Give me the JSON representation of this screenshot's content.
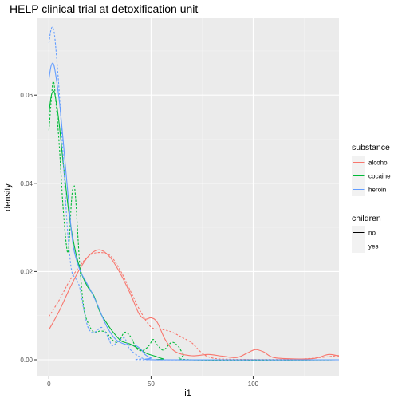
{
  "chart_data": {
    "type": "line",
    "title": "HELP clinical trial at detoxification unit",
    "xlabel": "i1",
    "ylabel": "density",
    "xlim": [
      -6,
      142
    ],
    "ylim": [
      -0.0038,
      0.0774
    ],
    "x_ticks": [
      0,
      50,
      100
    ],
    "x_tick_labels": [
      "0",
      "50",
      "100"
    ],
    "y_ticks": [
      0.0,
      0.02,
      0.04,
      0.06
    ],
    "y_tick_labels": [
      "0.00",
      "0.02",
      "0.04",
      "0.06"
    ],
    "grid": true,
    "legend_position": "right",
    "legends": [
      {
        "title": "substance",
        "items": [
          {
            "label": "alcohol",
            "color": "#F8766D"
          },
          {
            "label": "cocaine",
            "color": "#00BA38"
          },
          {
            "label": "heroin",
            "color": "#619CFF"
          }
        ]
      },
      {
        "title": "children",
        "items": [
          {
            "label": "no",
            "linetype": "solid"
          },
          {
            "label": "yes",
            "linetype": "dashed"
          }
        ]
      }
    ],
    "series": [
      {
        "substance": "alcohol",
        "children": "no",
        "color": "#F8766D",
        "linetype": "solid",
        "points": [
          [
            0,
            0.0068
          ],
          [
            5,
            0.011
          ],
          [
            10,
            0.016
          ],
          [
            15,
            0.0205
          ],
          [
            20,
            0.0238
          ],
          [
            25,
            0.0249
          ],
          [
            30,
            0.0232
          ],
          [
            35,
            0.0195
          ],
          [
            40,
            0.0148
          ],
          [
            44,
            0.0105
          ],
          [
            47,
            0.0092
          ],
          [
            50,
            0.0095
          ],
          [
            53,
            0.0085
          ],
          [
            57,
            0.0045
          ],
          [
            62,
            0.0018
          ],
          [
            70,
            0.0009
          ],
          [
            78,
            0.0012
          ],
          [
            85,
            0.0008
          ],
          [
            92,
            0.0005
          ],
          [
            97,
            0.0015
          ],
          [
            101,
            0.0023
          ],
          [
            105,
            0.0018
          ],
          [
            110,
            0.0005
          ],
          [
            120,
            0.0002
          ],
          [
            130,
            0.0003
          ],
          [
            137,
            0.0012
          ],
          [
            142,
            0.0008
          ]
        ]
      },
      {
        "substance": "alcohol",
        "children": "yes",
        "color": "#F8766D",
        "linetype": "dashed",
        "points": [
          [
            0,
            0.0098
          ],
          [
            5,
            0.0135
          ],
          [
            10,
            0.0178
          ],
          [
            15,
            0.0212
          ],
          [
            20,
            0.0237
          ],
          [
            25,
            0.0243
          ],
          [
            30,
            0.0236
          ],
          [
            35,
            0.0202
          ],
          [
            40,
            0.0155
          ],
          [
            45,
            0.0108
          ],
          [
            50,
            0.0074
          ],
          [
            55,
            0.0069
          ],
          [
            60,
            0.0063
          ],
          [
            65,
            0.0051
          ],
          [
            70,
            0.0038
          ],
          [
            75,
            0.0015
          ],
          [
            80,
            0.0004
          ],
          [
            90,
            0.0001
          ],
          [
            120,
            0.0001
          ],
          [
            135,
            0.0006
          ],
          [
            142,
            0.001
          ]
        ]
      },
      {
        "substance": "cocaine",
        "children": "no",
        "color": "#00BA38",
        "linetype": "solid",
        "points": [
          [
            0,
            0.0556
          ],
          [
            1,
            0.0595
          ],
          [
            2,
            0.0608
          ],
          [
            3,
            0.06
          ],
          [
            5,
            0.0535
          ],
          [
            7,
            0.0445
          ],
          [
            10,
            0.0325
          ],
          [
            13,
            0.0245
          ],
          [
            16,
            0.0195
          ],
          [
            19,
            0.0165
          ],
          [
            22,
            0.0145
          ],
          [
            25,
            0.0108
          ],
          [
            28,
            0.0085
          ],
          [
            31,
            0.0065
          ],
          [
            35,
            0.0044
          ],
          [
            38,
            0.0038
          ],
          [
            40,
            0.0035
          ],
          [
            42,
            0.003
          ],
          [
            45,
            0.0022
          ],
          [
            48,
            0.0014
          ],
          [
            52,
            0.0008
          ],
          [
            56,
            0.0002
          ],
          [
            60,
            0.0
          ],
          [
            142,
            0.0
          ]
        ]
      },
      {
        "substance": "cocaine",
        "children": "yes",
        "color": "#00BA38",
        "linetype": "dashed",
        "points": [
          [
            0,
            0.052
          ],
          [
            1,
            0.058
          ],
          [
            2,
            0.063
          ],
          [
            3,
            0.0605
          ],
          [
            5,
            0.049
          ],
          [
            7,
            0.034
          ],
          [
            9,
            0.0245
          ],
          [
            10,
            0.0275
          ],
          [
            11,
            0.0358
          ],
          [
            12,
            0.0395
          ],
          [
            13,
            0.037
          ],
          [
            15,
            0.022
          ],
          [
            17,
            0.012
          ],
          [
            19,
            0.0085
          ],
          [
            22,
            0.0062
          ],
          [
            25,
            0.0065
          ],
          [
            28,
            0.0062
          ],
          [
            31,
            0.0045
          ],
          [
            34,
            0.004
          ],
          [
            37,
            0.0062
          ],
          [
            40,
            0.0052
          ],
          [
            43,
            0.0025
          ],
          [
            46,
            0.0021
          ],
          [
            49,
            0.0032
          ],
          [
            51,
            0.0046
          ],
          [
            53,
            0.0034
          ],
          [
            56,
            0.0022
          ],
          [
            60,
            0.0039
          ],
          [
            63,
            0.0032
          ],
          [
            66,
            0.0012
          ],
          [
            70,
            0.0
          ],
          [
            142,
            0.0
          ]
        ]
      },
      {
        "substance": "heroin",
        "children": "no",
        "color": "#619CFF",
        "linetype": "solid",
        "points": [
          [
            0,
            0.0636
          ],
          [
            1,
            0.0665
          ],
          [
            2,
            0.0672
          ],
          [
            3,
            0.0655
          ],
          [
            5,
            0.059
          ],
          [
            7,
            0.0495
          ],
          [
            10,
            0.034
          ],
          [
            12,
            0.0255
          ],
          [
            15,
            0.0205
          ],
          [
            18,
            0.0178
          ],
          [
            21,
            0.0152
          ],
          [
            24,
            0.0122
          ],
          [
            27,
            0.0088
          ],
          [
            30,
            0.0062
          ],
          [
            33,
            0.0045
          ],
          [
            36,
            0.0037
          ],
          [
            39,
            0.0033
          ],
          [
            42,
            0.0033
          ],
          [
            45,
            0.0024
          ],
          [
            47,
            0.0012
          ],
          [
            50,
            0.0004
          ],
          [
            55,
            0.0
          ],
          [
            142,
            0.0
          ]
        ]
      },
      {
        "substance": "heroin",
        "children": "yes",
        "color": "#619CFF",
        "linetype": "dashed",
        "points": [
          [
            0,
            0.0718
          ],
          [
            1,
            0.0748
          ],
          [
            2,
            0.0752
          ],
          [
            3,
            0.0725
          ],
          [
            5,
            0.061
          ],
          [
            7,
            0.0455
          ],
          [
            9,
            0.03
          ],
          [
            11,
            0.0205
          ],
          [
            13,
            0.0185
          ],
          [
            15,
            0.0165
          ],
          [
            17,
            0.0115
          ],
          [
            19,
            0.0075
          ],
          [
            21,
            0.0062
          ],
          [
            23,
            0.0064
          ],
          [
            26,
            0.0073
          ],
          [
            29,
            0.0051
          ],
          [
            31,
            0.0032
          ],
          [
            34,
            0.0042
          ],
          [
            37,
            0.0049
          ],
          [
            39,
            0.0028
          ],
          [
            42,
            0.0014
          ],
          [
            46,
            0.0003
          ],
          [
            50,
            0.0
          ],
          [
            142,
            0.0
          ]
        ]
      }
    ]
  }
}
